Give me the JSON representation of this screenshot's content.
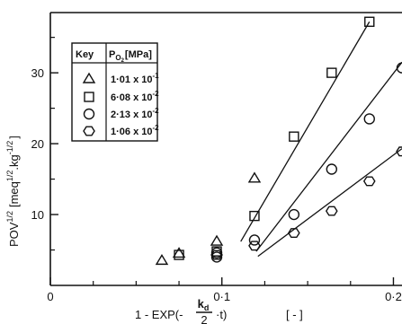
{
  "chart_data": {
    "type": "scatter",
    "xlabel": {
      "before": "1 - EXP(-",
      "frac_num": "k",
      "frac_num_sub": "d",
      "frac_den": "2",
      "after": "·t)",
      "unit": "[ - ]"
    },
    "ylabel": {
      "base": "POV",
      "base_sup": "1/2",
      "unit_open": "[meq",
      "unit_sup1": "1/2",
      "unit_mid": ".kg",
      "unit_sup2": "-1/2",
      "unit_close": "]"
    },
    "xlim": [
      0,
      0.205
    ],
    "ylim": [
      0,
      38.5
    ],
    "xticks": [
      {
        "value": 0,
        "label": "0"
      },
      {
        "value": 0.1,
        "label": "0·1"
      },
      {
        "value": 0.2,
        "label": "0·2"
      }
    ],
    "xminor": [
      0.025,
      0.05,
      0.075,
      0.125,
      0.15,
      0.175
    ],
    "yticks": [
      {
        "value": 10,
        "label": "10"
      },
      {
        "value": 20,
        "label": "20"
      },
      {
        "value": 30,
        "label": "30"
      }
    ],
    "yminor": [
      5,
      15,
      25,
      35
    ],
    "legend": {
      "placement": "top-left",
      "header_key": "Key",
      "header_param": "P",
      "header_param_sub": "O",
      "header_param_subsub": "2",
      "header_unit": "[MPa]"
    },
    "series": [
      {
        "marker": "triangle",
        "label_mantissa": "1·01 x 10",
        "label_exp": "-1",
        "x": [
          0.065,
          0.075,
          0.097,
          0.119
        ],
        "y": [
          3.5,
          4.5,
          6.2,
          15.1
        ],
        "fit": null
      },
      {
        "marker": "square",
        "label_mantissa": "6·08 x 10",
        "label_exp": "-2",
        "x": [
          0.075,
          0.097,
          0.119,
          0.142,
          0.164,
          0.186
        ],
        "y": [
          4.3,
          4.8,
          9.8,
          21.0,
          30.0,
          37.2
        ],
        "fit": {
          "x": [
            0.111,
            0.186
          ],
          "y": [
            6.2,
            37.2
          ]
        }
      },
      {
        "marker": "circle",
        "label_mantissa": "2·13 x 10",
        "label_exp": "-2",
        "x": [
          0.097,
          0.097,
          0.119,
          0.142,
          0.164,
          0.186,
          0.205
        ],
        "y": [
          4.0,
          4.6,
          6.4,
          10.0,
          16.4,
          23.5,
          30.7
        ],
        "fit": {
          "x": [
            0.12,
            0.205
          ],
          "y": [
            4.8,
            31.5
          ]
        }
      },
      {
        "marker": "hexagon",
        "label_mantissa": "1·06 x 10",
        "label_exp": "-2",
        "x": [
          0.097,
          0.119,
          0.142,
          0.164,
          0.186,
          0.205
        ],
        "y": [
          4.3,
          5.6,
          7.4,
          10.5,
          14.7,
          18.9
        ],
        "fit": {
          "x": [
            0.121,
            0.205
          ],
          "y": [
            4.1,
            19.3
          ]
        }
      }
    ]
  }
}
